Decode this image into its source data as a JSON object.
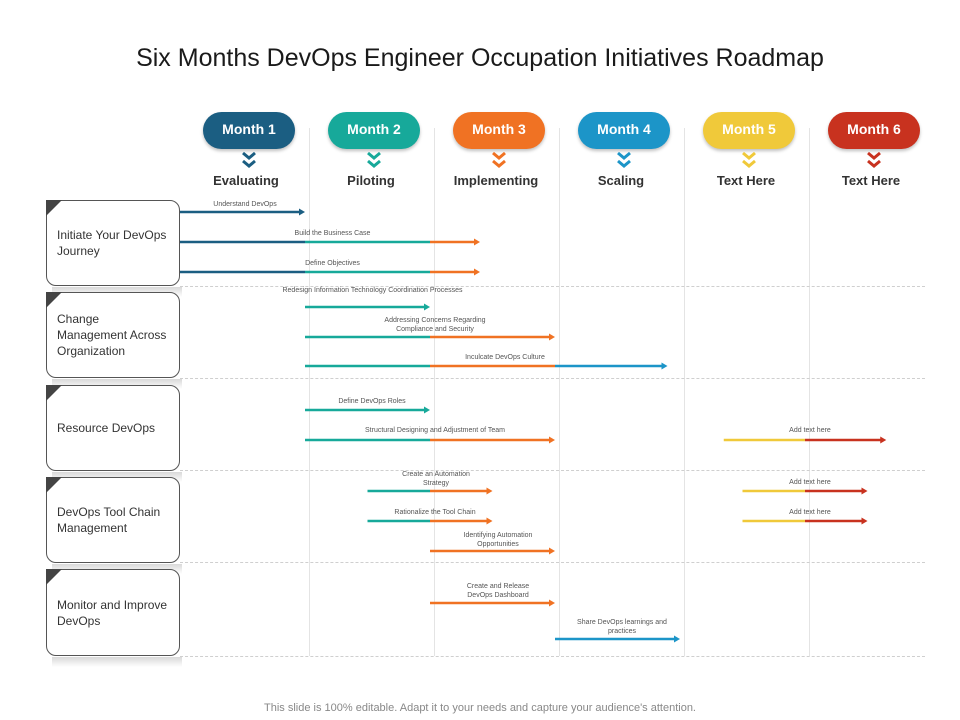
{
  "title": "Six Months DevOps Engineer Occupation Initiatives Roadmap",
  "months": [
    {
      "label": "Month 1",
      "stage": "Evaluating",
      "color": "#1b5e82"
    },
    {
      "label": "Month 2",
      "stage": "Piloting",
      "color": "#17a99a"
    },
    {
      "label": "Month 3",
      "stage": "Implementing",
      "color": "#f07223"
    },
    {
      "label": "Month 4",
      "stage": "Scaling",
      "color": "#1c95c8"
    },
    {
      "label": "Month 5",
      "stage": "Text Here",
      "color": "#f0c93a"
    },
    {
      "label": "Month 6",
      "stage": "Text Here",
      "color": "#c8321f"
    }
  ],
  "categories": [
    {
      "label": "Initiate Your DevOps Journey"
    },
    {
      "label": "Change Management Across Organization"
    },
    {
      "label": "Resource DevOps"
    },
    {
      "label": "DevOps Tool Chain Management"
    },
    {
      "label": "Monitor and Improve DevOps"
    }
  ],
  "tasks": [
    {
      "label": "Understand DevOps",
      "start": 0.0,
      "end": 1.0,
      "colors": [
        "#1b5e82"
      ]
    },
    {
      "label": "Build the Business Case",
      "start": 0.0,
      "end": 2.4,
      "colors": [
        "#1b5e82",
        "#17a99a",
        "#f07223"
      ]
    },
    {
      "label": "Define Objectives",
      "start": 0.0,
      "end": 2.4,
      "colors": [
        "#1b5e82",
        "#17a99a",
        "#f07223"
      ]
    },
    {
      "label": "Redesign Information Technology Coordination Processes",
      "start": 1.0,
      "end": 2.0,
      "colors": [
        "#17a99a"
      ]
    },
    {
      "label": "Addressing Concerns Regarding Compliance and Security",
      "start": 1.0,
      "end": 3.0,
      "colors": [
        "#17a99a",
        "#f07223"
      ]
    },
    {
      "label": "Inculcate DevOps Culture",
      "start": 1.0,
      "end": 3.9,
      "colors": [
        "#17a99a",
        "#f07223",
        "#1c95c8"
      ]
    },
    {
      "label": "Define DevOps Roles",
      "start": 1.0,
      "end": 2.0,
      "colors": [
        "#17a99a"
      ]
    },
    {
      "label": "Structural Designing and Adjustment of Team",
      "start": 1.0,
      "end": 3.0,
      "colors": [
        "#17a99a",
        "#f07223"
      ]
    },
    {
      "label": "Add text here",
      "start": 4.35,
      "end": 5.65,
      "colors": [
        "#f0c93a",
        "#c8321f"
      ]
    },
    {
      "label": "Create an Automation Strategy",
      "start": 1.5,
      "end": 2.5,
      "colors": [
        "#17a99a",
        "#f07223"
      ]
    },
    {
      "label": "Rationalize the Tool Chain",
      "start": 1.5,
      "end": 2.5,
      "colors": [
        "#17a99a",
        "#f07223"
      ]
    },
    {
      "label": "Add text here",
      "start": 4.5,
      "end": 5.5,
      "colors": [
        "#f0c93a",
        "#c8321f"
      ]
    },
    {
      "label": "Add text here",
      "start": 4.5,
      "end": 5.5,
      "colors": [
        "#f0c93a",
        "#c8321f"
      ]
    },
    {
      "label": "Identifying Automation Opportunities",
      "start": 2.0,
      "end": 3.0,
      "colors": [
        "#f07223"
      ]
    },
    {
      "label": "Create and Release DevOps Dashboard",
      "start": 2.0,
      "end": 3.0,
      "colors": [
        "#f07223"
      ]
    },
    {
      "label": "Share DevOps learnings and practices",
      "start": 3.0,
      "end": 4.0,
      "colors": [
        "#1c95c8"
      ]
    }
  ],
  "footer": "This slide is 100% editable. Adapt it to your needs and capture your audience's attention."
}
